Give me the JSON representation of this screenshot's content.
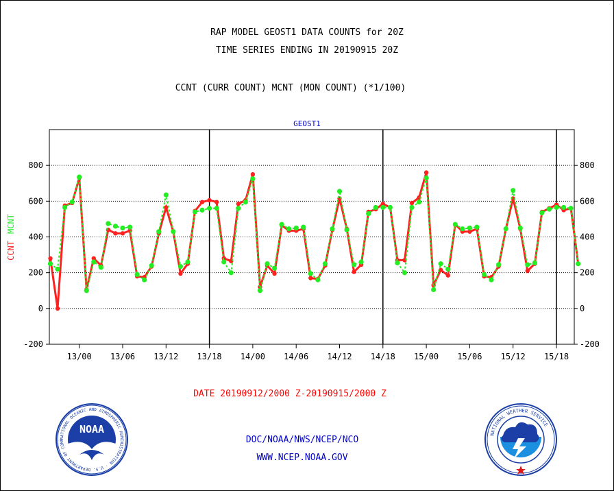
{
  "header": {
    "title_line1": "RAP MODEL GEOST1 DATA COUNTS for 20Z",
    "title_line2": "TIME SERIES ENDING IN 20190915 20Z",
    "subtitle": "CCNT (CURR COUNT) MCNT (MON COUNT) (*1/100)"
  },
  "footer": {
    "date_range": "DATE 20190912/2000 Z-20190915/2000 Z",
    "agency": "DOC/NOAA/NWS/NCEP/NCO",
    "website": "WWW.NCEP.NOAA.GOV",
    "noaa_logo_text": "NOAA",
    "noaa_logo_ring": "NATIONAL OCEANIC AND ATMOSPHERIC ADMINISTRATION · U.S. DEPARTMENT OF COMMERCE",
    "nws_logo_ring": "NATIONAL WEATHER SERVICE"
  },
  "colors": {
    "ccnt": "#ff2020",
    "mcnt": "#22ee22",
    "title": "#000000",
    "panel_title": "#0000cc",
    "date": "#ff0000",
    "link": "#0000cc"
  },
  "chart_data": {
    "type": "line",
    "title": "GEOST1",
    "ylabel_parts": [
      {
        "text": "CCNT",
        "color": "#ff2020"
      },
      {
        "text": "MCNT",
        "color": "#22ee22"
      }
    ],
    "ylim": [
      -200,
      1000
    ],
    "yticks": [
      -200,
      0,
      200,
      400,
      600,
      800
    ],
    "grid": true,
    "x_start": "2019-09-12 20Z",
    "x_end": "2019-09-15 20Z",
    "x_step_hours": 1,
    "xticks": [
      "13/00",
      "13/06",
      "13/12",
      "13/18",
      "14/00",
      "14/06",
      "14/12",
      "14/18",
      "15/00",
      "15/06",
      "15/12",
      "15/18"
    ],
    "day_separators": [
      "13/18",
      "14/18",
      "15/18"
    ],
    "series": [
      {
        "name": "CCNT",
        "color": "#ff2020",
        "values": [
          280,
          0,
          575,
          590,
          730,
          105,
          280,
          240,
          440,
          420,
          420,
          435,
          180,
          175,
          235,
          420,
          565,
          430,
          195,
          250,
          545,
          595,
          605,
          595,
          280,
          265,
          585,
          605,
          750,
          120,
          240,
          195,
          465,
          435,
          435,
          445,
          170,
          165,
          240,
          440,
          615,
          445,
          205,
          245,
          540,
          555,
          585,
          565,
          270,
          270,
          590,
          620,
          760,
          130,
          215,
          185,
          470,
          430,
          430,
          445,
          180,
          175,
          235,
          445,
          615,
          445,
          210,
          250,
          540,
          560,
          580,
          550,
          560,
          250
        ]
      },
      {
        "name": "MCNT",
        "color": "#22ee22",
        "values": [
          250,
          220,
          565,
          595,
          735,
          100,
          260,
          230,
          475,
          460,
          450,
          455,
          190,
          160,
          240,
          430,
          635,
          430,
          235,
          260,
          540,
          550,
          560,
          560,
          260,
          200,
          560,
          595,
          725,
          100,
          250,
          225,
          470,
          445,
          450,
          455,
          195,
          160,
          250,
          445,
          655,
          440,
          245,
          260,
          530,
          565,
          565,
          565,
          255,
          200,
          565,
          595,
          730,
          105,
          250,
          220,
          470,
          445,
          450,
          455,
          190,
          160,
          245,
          445,
          660,
          450,
          245,
          255,
          535,
          555,
          565,
          565,
          560,
          250
        ]
      }
    ]
  }
}
